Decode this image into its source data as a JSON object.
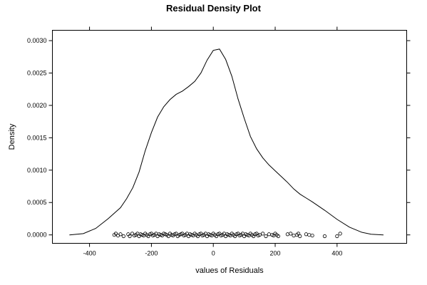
{
  "chart_data": {
    "type": "line",
    "title": "Residual Density Plot",
    "xlabel": "values of Residuals",
    "ylabel": "Density",
    "xlim": [
      -520,
      625
    ],
    "ylim": [
      -0.00013,
      0.00316
    ],
    "x_ticks": [
      -400,
      -200,
      0,
      200,
      400
    ],
    "x_tick_labels": [
      "-400",
      "-200",
      "0",
      "200",
      "400"
    ],
    "y_ticks": [
      0.0,
      0.0005,
      0.001,
      0.0015,
      0.002,
      0.0025,
      0.003
    ],
    "y_tick_labels": [
      "0.0000",
      "0.0005",
      "0.0010",
      "0.0015",
      "0.0020",
      "0.0025",
      "0.0030"
    ],
    "grid": false,
    "series": [
      {
        "x": [
          -465,
          -420,
          -380,
          -340,
          -300,
          -280,
          -260,
          -240,
          -220,
          -200,
          -180,
          -160,
          -140,
          -120,
          -100,
          -80,
          -60,
          -40,
          -20,
          0,
          20,
          40,
          60,
          80,
          100,
          120,
          140,
          160,
          180,
          200,
          220,
          240,
          260,
          280,
          300,
          320,
          360,
          400,
          440,
          480,
          510,
          550
        ],
        "y": [
          0.0,
          2e-05,
          0.0001,
          0.00025,
          0.00042,
          0.00056,
          0.00073,
          0.00097,
          0.0013,
          0.00158,
          0.00182,
          0.00198,
          0.00209,
          0.00217,
          0.00222,
          0.00229,
          0.00237,
          0.0025,
          0.0027,
          0.00285,
          0.00287,
          0.00271,
          0.00245,
          0.0021,
          0.0018,
          0.00152,
          0.00133,
          0.00119,
          0.00108,
          0.00099,
          0.0009,
          0.00081,
          0.00071,
          0.00063,
          0.00057,
          0.00051,
          0.00038,
          0.00024,
          0.00012,
          4e-05,
          1e-05,
          0.0
        ]
      }
    ],
    "rug_x": [
      -320,
      -315,
      -308,
      -300,
      -290,
      -275,
      -270,
      -262,
      -255,
      -250,
      -245,
      -240,
      -235,
      -230,
      -225,
      -220,
      -215,
      -210,
      -205,
      -200,
      -195,
      -190,
      -185,
      -180,
      -175,
      -170,
      -165,
      -160,
      -155,
      -150,
      -145,
      -140,
      -135,
      -130,
      -125,
      -120,
      -115,
      -110,
      -105,
      -100,
      -95,
      -90,
      -85,
      -80,
      -75,
      -70,
      -65,
      -60,
      -55,
      -50,
      -45,
      -40,
      -35,
      -30,
      -25,
      -20,
      -15,
      -10,
      -5,
      0,
      5,
      10,
      15,
      20,
      25,
      30,
      35,
      40,
      45,
      50,
      55,
      60,
      65,
      70,
      75,
      80,
      85,
      90,
      95,
      100,
      105,
      110,
      115,
      120,
      125,
      130,
      135,
      140,
      145,
      150,
      160,
      170,
      180,
      190,
      195,
      200,
      205,
      210,
      240,
      250,
      260,
      270,
      275,
      280,
      300,
      310,
      320,
      360,
      400,
      410
    ],
    "rug_y": [
      0.0,
      2e-05,
      -1e-05,
      1e-05,
      -2e-05,
      1e-05,
      -2e-05,
      2e-05,
      -1e-05,
      0.0,
      2e-05,
      -2e-05,
      1e-05,
      0.0,
      -1e-05,
      2e-05,
      0.0,
      -2e-05,
      1e-05,
      2e-05,
      -1e-05,
      0.0,
      2e-05,
      -2e-05,
      1e-05,
      0.0,
      -1e-05,
      2e-05,
      1e-05,
      0.0,
      -2e-05,
      2e-05,
      0.0,
      -1e-05,
      1e-05,
      2e-05,
      -2e-05,
      0.0,
      1e-05,
      2e-05,
      -1e-05,
      0.0,
      2e-05,
      -2e-05,
      1e-05,
      0.0,
      -1e-05,
      2e-05,
      0.0,
      -2e-05,
      1e-05,
      2e-05,
      -1e-05,
      0.0,
      2e-05,
      -2e-05,
      1e-05,
      0.0,
      -1e-05,
      2e-05,
      0.0,
      -2e-05,
      1e-05,
      2e-05,
      -1e-05,
      0.0,
      2e-05,
      -2e-05,
      1e-05,
      0.0,
      -1e-05,
      2e-05,
      0.0,
      -2e-05,
      1e-05,
      2e-05,
      -1e-05,
      0.0,
      2e-05,
      -2e-05,
      1e-05,
      0.0,
      -1e-05,
      2e-05,
      0.0,
      -2e-05,
      1e-05,
      2e-05,
      -1e-05,
      0.0,
      2e-05,
      -2e-05,
      1e-05,
      0.0,
      -1e-05,
      2e-05,
      0.0,
      -2e-05,
      1e-05,
      2e-05,
      -1e-05,
      0.0,
      2e-05,
      -2e-05,
      1e-05,
      0.0,
      -1e-05,
      -2e-05,
      -2e-05,
      2e-05
    ]
  }
}
